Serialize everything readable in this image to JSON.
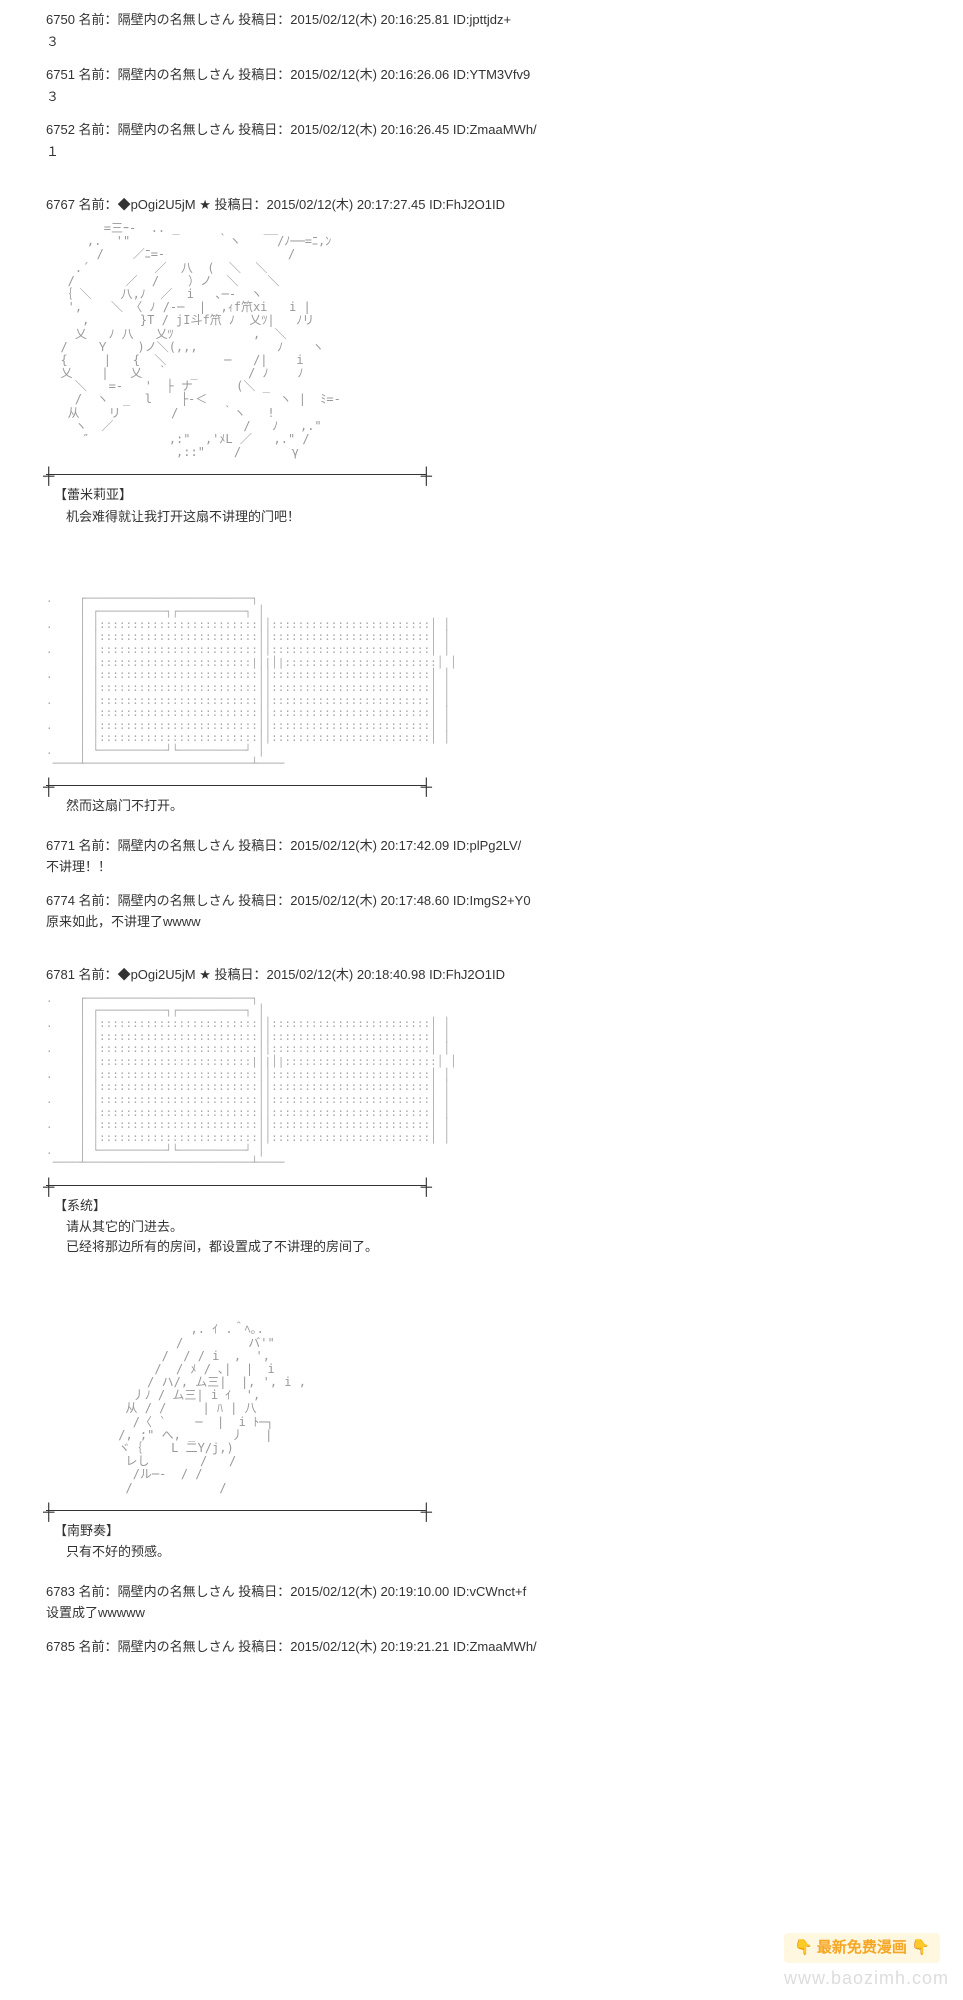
{
  "posts": [
    {
      "num": "6750",
      "name": "隔壁内の名無しさん",
      "date": "2015/02/12(木) 20:16:25.81",
      "id": "jpttjdz+",
      "body": "３"
    },
    {
      "num": "6751",
      "name": "隔壁内の名無しさん",
      "date": "2015/02/12(木) 20:16:26.06",
      "id": "YTM3Vfv9",
      "body": "３"
    },
    {
      "num": "6752",
      "name": "隔壁内の名無しさん",
      "date": "2015/02/12(木) 20:16:26.45",
      "id": "ZmaaMWh/",
      "body": "１"
    },
    {
      "num": "6767",
      "name": "◆pOgi2U5jM ★",
      "date": "2015/02/12(木) 20:17:27.45",
      "id": "FhJ2O1ID",
      "speech_title": "【蕾米莉亚】",
      "speech_text": "机会难得就让我打开这扇不讲理的门吧！",
      "speech2_text": "然而这扇门不打开。"
    },
    {
      "num": "6771",
      "name": "隔壁内の名無しさん",
      "date": "2015/02/12(木) 20:17:42.09",
      "id": "plPg2LV/",
      "body": "不讲理！！"
    },
    {
      "num": "6774",
      "name": "隔壁内の名無しさん",
      "date": "2015/02/12(木) 20:17:48.60",
      "id": "ImgS2+Y0",
      "body": "原来如此，不讲理了wwww"
    },
    {
      "num": "6781",
      "name": "◆pOgi2U5jM ★",
      "date": "2015/02/12(木) 20:18:40.98",
      "id": "FhJ2O1ID",
      "speech_title": "【系统】",
      "speech_line1": "请从其它的门进去。",
      "speech_line2": "已经将那边所有的房间，都设置成了不讲理的房间了。",
      "speech2_title": "【南野奏】",
      "speech2_text": "只有不好的预感。"
    },
    {
      "num": "6783",
      "name": "隔壁内の名無しさん",
      "date": "2015/02/12(木) 20:19:10.00",
      "id": "vCWnct+f",
      "body": "设置成了wwwww"
    },
    {
      "num": "6785",
      "name": "隔壁内の名無しさん",
      "date": "2015/02/12(木) 20:19:21.21",
      "id": "ZmaaMWh/"
    }
  ],
  "labels": {
    "name_prefix": "名前：",
    "date_prefix": "投稿日：",
    "id_prefix": "ID:"
  },
  "watermark": {
    "banner_left": "👇",
    "banner_text": "最新免费漫画",
    "banner_right": "👇",
    "url": "www.baozimh.com"
  },
  "art": {
    "remilia": "        =三ｰ-  .. _　　　　　　　__\n    　,.  '\"            ｀ヽ     /ﾉ──=ﾆ,ﾝ\n       /    ／ﾆ=-                 /\n    .΄         ／  八  (  ＼  ＼\n   /       ／  /    ）ノ  ＼    ＼\n  ｛ ＼    八,ﾉ  ／  i   ､─-  ヽ\n   ',    ＼ 〈 ﾉ /-─  |  ,ｨf笊xi   i |\n     ,       }T / jI斗f笊 ﾉ  乂ﾂ|   ﾉリ\n    乂   ﾉ 八   乂ﾂ           ,  ＼\n  /    Ｙ    )ノ＼(,,,           ﾉ    ヽ\n  {     |   {  ＼        ─   /|    i\n  乂    |   乂  ｀   _       / ﾉ    ﾉ\n    ＼   =-   '  ├ ナ      (＼ _\n    /  ヽ  _  l    ├-＜          ヽ |  ﾐ=-\n   从    リ       /      ｀ヽ   !\n    ヽ  ／                  /   ﾉ   ,.\"\n     ″           ,:\"  ,'ﾒL ／   ,.\" /\n                  ,::\"    /       γ",
    "door": ".    ┌─────────────────────────┐\n     │ ┌──────────┐┌──────────┐ │\n.    │ │::::::::::::::::::::::::││::::::::::::::::::::::::│ │\n     │ │::::::::::::::::::::::::││::::::::::::::::::::::::│ │\n.    │ │::::::::::::::::::::::::││::::::::::::::::::::::::│ │\n     │ │:::::::::::::::::::::::|│|│|:::::::::::::::::::::::│ │\n.    │ │::::::::::::::::::::::::││::::::::::::::::::::::::│ │\n     │ │::::::::::::::::::::::::││::::::::::::::::::::::::│ │\n.    │ │::::::::::::::::::::::::││::::::::::::::::::::::::│ │\n     │ │::::::::::::::::::::::::││::::::::::::::::::::::::│ │\n.    │ │::::::::::::::::::::::::││::::::::::::::::::::::::│ │\n     │ │::::::::::::::::::::::::││::::::::::::::::::::::::│ │\n.    │ └──────────┘└──────────┘ │\n ────┴─────────────────────────┴────",
    "kanade": "                    ,. ｲ .＾ﾍ｡.\n                  /         バ'\"\n                /  / / i  ,  ',\n               /  / ﾒ / ､|  |  i\n              / ハ/, ム三|  |, ', i ,\n            丿ﾉ / ム三| i ｲ  ',\n           从 / /     | ﾊ | 八\n            /〈 `    ─  |  i ﾄ─┐\n          /, ;\" へ, _     丿   |\n          ヾ｛    L 二Y/j,)\n           レし       /   /\n            /ル─-  / /\n           /            /"
  }
}
